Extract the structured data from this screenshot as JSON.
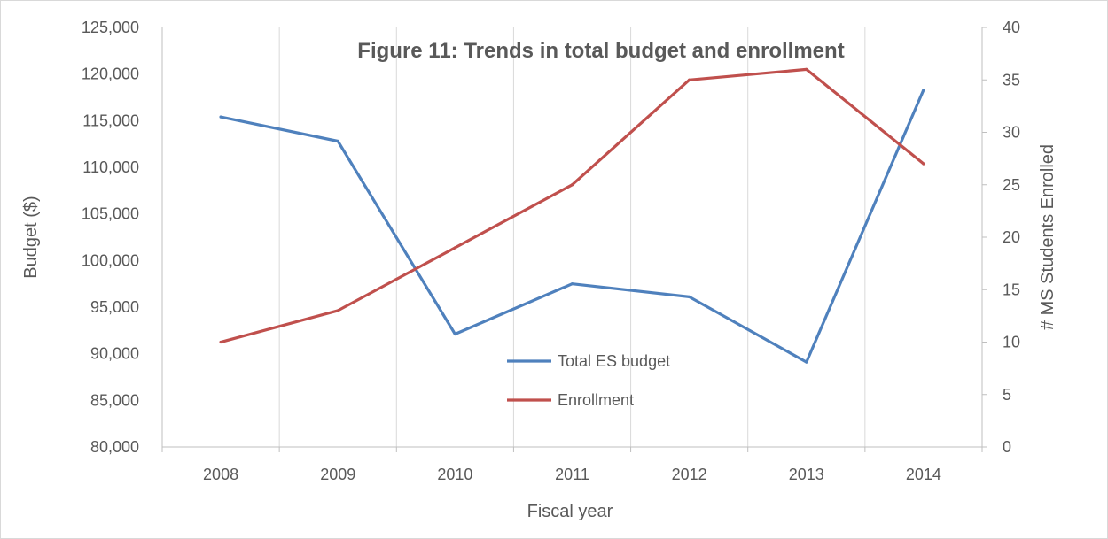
{
  "chart_data": {
    "type": "line",
    "title": "Figure 11: Trends in total budget and enrollment",
    "xlabel": "Fiscal year",
    "ylabel": "Budget ($)",
    "y2label": "# MS Students Enrolled",
    "categories": [
      "2008",
      "2009",
      "2010",
      "2011",
      "2012",
      "2013",
      "2014"
    ],
    "ylim": [
      80000,
      125000
    ],
    "y_ticks": [
      "80,000",
      "85,000",
      "90,000",
      "95,000",
      "100,000",
      "105,000",
      "110,000",
      "115,000",
      "120,000",
      "125,000"
    ],
    "y2lim": [
      0,
      40
    ],
    "y2_ticks": [
      "0",
      "5",
      "10",
      "15",
      "20",
      "25",
      "30",
      "35",
      "40"
    ],
    "grid": "vertical",
    "legend_position": "center-bottom",
    "series": [
      {
        "name": "Total ES budget",
        "axis": "left",
        "color": "#4f81bd",
        "values": [
          115400,
          112800,
          92100,
          97500,
          96100,
          89100,
          118300
        ]
      },
      {
        "name": "Enrollment",
        "axis": "right",
        "color": "#c0504d",
        "values": [
          10,
          13,
          19,
          25,
          35,
          36,
          27
        ]
      }
    ]
  }
}
